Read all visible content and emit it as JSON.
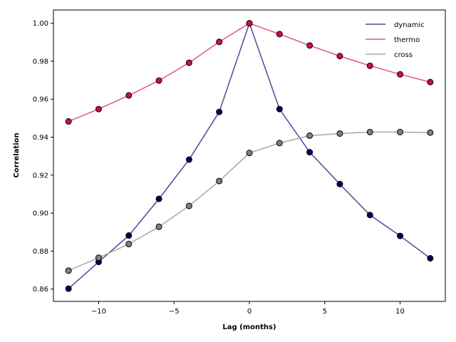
{
  "chart_data": {
    "type": "line",
    "xlabel": "Lag (months)",
    "ylabel": "Correlation",
    "xlim": [
      -13,
      13
    ],
    "ylim": [
      0.8535,
      1.007
    ],
    "xticks": [
      -10,
      -5,
      0,
      5,
      10
    ],
    "xtick_labels": [
      "−10",
      "−5",
      "0",
      "5",
      "10"
    ],
    "yticks": [
      0.86,
      0.88,
      0.9,
      0.92,
      0.94,
      0.96,
      0.98,
      1.0
    ],
    "ytick_labels": [
      "0.86",
      "0.88",
      "0.90",
      "0.92",
      "0.94",
      "0.96",
      "0.98",
      "1.00"
    ],
    "grid": false,
    "legend_position": "top-right",
    "x": [
      -12,
      -10,
      -8,
      -6,
      -4,
      -2,
      0,
      2,
      4,
      6,
      8,
      10,
      12
    ],
    "series": [
      {
        "name": "dynamic",
        "line_color": "#4a4a9c",
        "marker_color": "#00005a",
        "values": [
          0.8602,
          0.8743,
          0.8882,
          0.9075,
          0.9282,
          0.9533,
          1.0,
          0.9548,
          0.9321,
          0.9153,
          0.899,
          0.888,
          0.8762
        ]
      },
      {
        "name": "thermo",
        "line_color": "#e05a70",
        "marker_color": "#cc1040",
        "values": [
          0.9483,
          0.9548,
          0.962,
          0.9698,
          0.9792,
          0.9902,
          1.0,
          0.9943,
          0.9883,
          0.9827,
          0.9776,
          0.9731,
          0.969
        ]
      },
      {
        "name": "cross",
        "line_color": "#a8a8a8",
        "marker_color": "#808080",
        "values": [
          0.8697,
          0.8765,
          0.8837,
          0.8928,
          0.9038,
          0.9169,
          0.9317,
          0.9369,
          0.9408,
          0.9419,
          0.9427,
          0.9427,
          0.9424
        ]
      }
    ]
  }
}
